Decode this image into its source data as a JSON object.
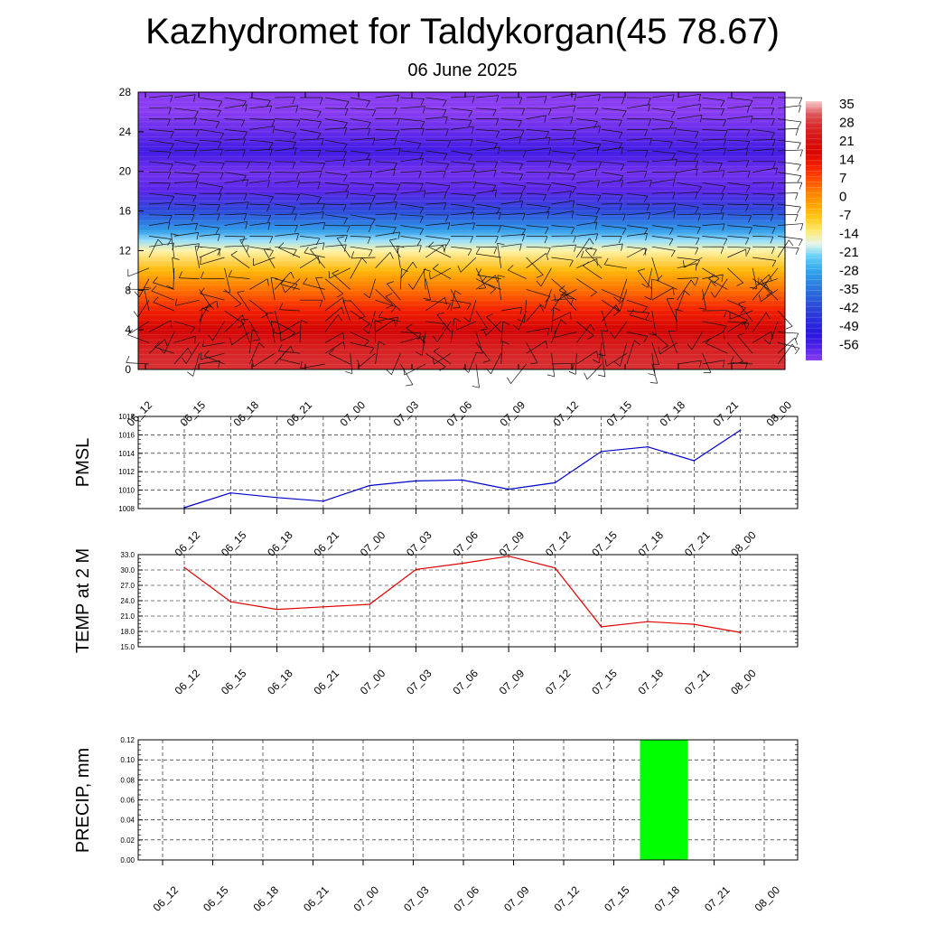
{
  "title": "Kazhydromet for Taldykorgan(45 78.67)",
  "subtitle": "06 June 2025",
  "chart_data": [
    {
      "type": "heatmap",
      "name": "temperature-height-section",
      "x_ticks": [
        "06_12",
        "06_15",
        "06_18",
        "06_21",
        "07_00",
        "07_03",
        "07_06",
        "07_09",
        "07_12",
        "07_15",
        "07_18",
        "07_21",
        "08_00"
      ],
      "y_ticks": [
        "0",
        "4",
        "8",
        "12",
        "16",
        "20",
        "24",
        "28"
      ],
      "ylim": [
        0,
        28
      ],
      "colorbar_labels": [
        "35",
        "28",
        "21",
        "14",
        "7",
        "0",
        "-7",
        "-14",
        "-21",
        "-28",
        "-35",
        "-42",
        "-49",
        "-56"
      ],
      "color_stops": [
        {
          "v": 38,
          "c": "#f4cccc"
        },
        {
          "v": 32,
          "c": "#d9363b"
        },
        {
          "v": 20,
          "c": "#d40000"
        },
        {
          "v": 12,
          "c": "#ff2a00"
        },
        {
          "v": 5,
          "c": "#ff7a00"
        },
        {
          "v": -2,
          "c": "#ffb000"
        },
        {
          "v": -8,
          "c": "#ffde2e"
        },
        {
          "v": -13,
          "c": "#fff9c8"
        },
        {
          "v": -16,
          "c": "#d6f2ff"
        },
        {
          "v": -21,
          "c": "#38c2f5"
        },
        {
          "v": -30,
          "c": "#2a7fe0"
        },
        {
          "v": -40,
          "c": "#2c3cd8"
        },
        {
          "v": -50,
          "c": "#2a10e0"
        },
        {
          "v": -58,
          "c": "#8a3cf2"
        }
      ],
      "temperature_profile_by_level": [
        {
          "level": 0,
          "t": 31
        },
        {
          "level": 2,
          "t": 27
        },
        {
          "level": 4,
          "t": 21
        },
        {
          "level": 6,
          "t": 14
        },
        {
          "level": 8,
          "t": 6
        },
        {
          "level": 10,
          "t": -3
        },
        {
          "level": 12,
          "t": -12
        },
        {
          "level": 13,
          "t": -18
        },
        {
          "level": 14,
          "t": -26
        },
        {
          "level": 16,
          "t": -38
        },
        {
          "level": 18,
          "t": -54
        },
        {
          "level": 20,
          "t": -56
        },
        {
          "level": 22,
          "t": -52
        },
        {
          "level": 24,
          "t": -55
        },
        {
          "level": 26,
          "t": -58
        },
        {
          "level": 28,
          "t": -58
        }
      ]
    },
    {
      "type": "line",
      "name": "pmsl",
      "ylabel": "PMSL",
      "categories": [
        "06_12",
        "06_15",
        "06_18",
        "06_21",
        "07_00",
        "07_03",
        "07_06",
        "07_09",
        "07_12",
        "07_15",
        "07_18",
        "07_21",
        "08_00"
      ],
      "series": [
        {
          "values": [
            1008.1,
            1009.7,
            1009.2,
            1008.8,
            1010.5,
            1011.0,
            1011.1,
            1010.1,
            1010.8,
            1014.2,
            1014.7,
            1013.2,
            1016.5
          ],
          "color": "#0000cc"
        }
      ],
      "ylim": [
        1008,
        1018
      ],
      "y_ticks": [
        "1008",
        "1010",
        "1012",
        "1014",
        "1016",
        "1018"
      ],
      "grid": true
    },
    {
      "type": "line",
      "name": "temp-2m",
      "ylabel": "TEMP at 2 M",
      "categories": [
        "06_12",
        "06_15",
        "06_18",
        "06_21",
        "07_00",
        "07_03",
        "07_06",
        "07_09",
        "07_12",
        "07_15",
        "07_18",
        "07_21",
        "08_00"
      ],
      "series": [
        {
          "values": [
            30.5,
            23.8,
            22.3,
            22.8,
            23.3,
            30.1,
            31.3,
            32.7,
            30.4,
            18.9,
            19.9,
            19.4,
            17.8
          ],
          "color": "#e00000"
        }
      ],
      "ylim": [
        15,
        33
      ],
      "y_ticks": [
        "15.0",
        "18.0",
        "21.0",
        "24.0",
        "27.0",
        "30.0",
        "33.0"
      ],
      "grid": true
    },
    {
      "type": "bar",
      "name": "precip",
      "ylabel": "PRECIP, mm",
      "categories": [
        "06_12",
        "06_15",
        "06_18",
        "06_21",
        "07_00",
        "07_03",
        "07_06",
        "07_09",
        "07_12",
        "07_15",
        "07_18",
        "07_21",
        "08_00"
      ],
      "values": [
        0,
        0,
        0,
        0,
        0,
        0,
        0,
        0,
        0,
        0,
        0.12,
        0,
        0
      ],
      "ylim": [
        0,
        0.12
      ],
      "y_ticks": [
        "0.00",
        "0.02",
        "0.04",
        "0.06",
        "0.08",
        "0.10",
        "0.12"
      ],
      "bar_color": "#00ff00",
      "grid": true
    }
  ]
}
